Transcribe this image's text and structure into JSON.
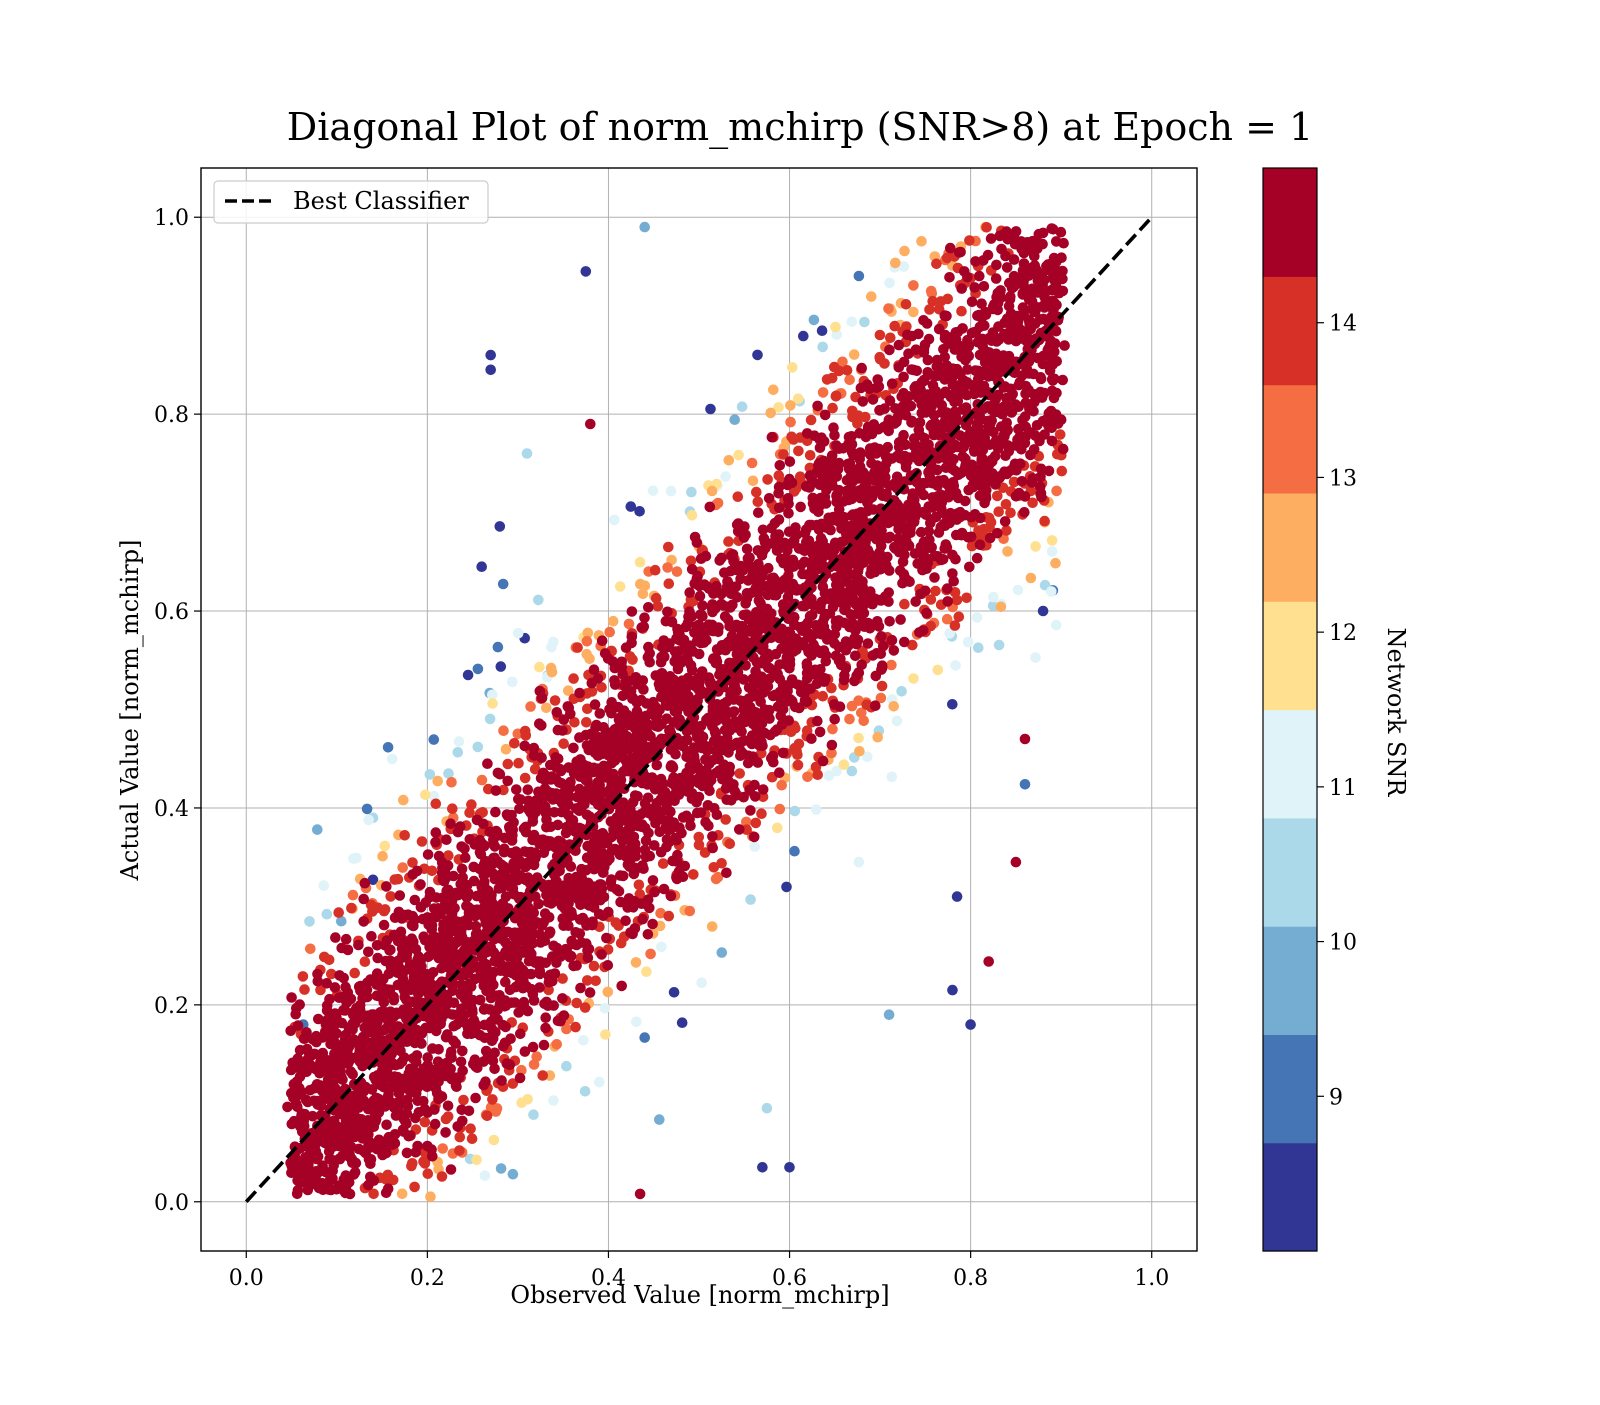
{
  "chart_data": {
    "type": "scatter",
    "title": "Diagonal Plot of norm_mchirp (SNR>8) at Epoch = 1",
    "xlabel": "Observed Value [norm_mchirp]",
    "ylabel": "Actual Value [norm_mchirp]",
    "xlim": [
      -0.05,
      1.05
    ],
    "ylim": [
      -0.05,
      1.05
    ],
    "xticks": [
      "0.0",
      "0.2",
      "0.4",
      "0.6",
      "0.8",
      "1.0"
    ],
    "yticks": [
      "0.0",
      "0.2",
      "0.4",
      "0.6",
      "0.8",
      "1.0"
    ],
    "grid": true,
    "legend": {
      "placement": "upper-left",
      "entries": [
        "Best Classifier"
      ]
    },
    "reference_line": {
      "name": "Best Classifier",
      "style": "dashed",
      "color": "#000000",
      "x": [
        0.0,
        1.0
      ],
      "y": [
        0.0,
        1.0
      ]
    },
    "colorbar": {
      "label": "Network SNR",
      "ticks": [
        "9",
        "10",
        "11",
        "12",
        "13",
        "14"
      ],
      "tick_values": [
        9,
        10,
        11,
        12,
        13,
        14
      ],
      "range": [
        8,
        15
      ],
      "bins": 10,
      "colors": [
        "#313695",
        "#4575b4",
        "#74add1",
        "#abd9e9",
        "#e0f3f8",
        "#fee090",
        "#fdae61",
        "#f46d43",
        "#d73027",
        "#a50026"
      ]
    },
    "points_sample": [
      {
        "x": 0.27,
        "y": 0.86,
        "snr": 8.3
      },
      {
        "x": 0.27,
        "y": 0.845,
        "snr": 8.3
      },
      {
        "x": 0.375,
        "y": 0.945,
        "snr": 8.3
      },
      {
        "x": 0.44,
        "y": 0.99,
        "snr": 9.5
      },
      {
        "x": 0.38,
        "y": 0.79,
        "snr": 14.8
      },
      {
        "x": 0.31,
        "y": 0.76,
        "snr": 10.2
      },
      {
        "x": 0.28,
        "y": 0.686,
        "snr": 8.5
      },
      {
        "x": 0.26,
        "y": 0.645,
        "snr": 8.5
      },
      {
        "x": 0.245,
        "y": 0.535,
        "snr": 8.5
      },
      {
        "x": 0.14,
        "y": 0.39,
        "snr": 10.2
      },
      {
        "x": 0.14,
        "y": 0.327,
        "snr": 8.5
      },
      {
        "x": 0.105,
        "y": 0.285,
        "snr": 9.8
      },
      {
        "x": 0.063,
        "y": 0.18,
        "snr": 9.0
      },
      {
        "x": 0.78,
        "y": 0.215,
        "snr": 8.4
      },
      {
        "x": 0.8,
        "y": 0.18,
        "snr": 8.4
      },
      {
        "x": 0.82,
        "y": 0.244,
        "snr": 14.8
      },
      {
        "x": 0.85,
        "y": 0.345,
        "snr": 14.8
      },
      {
        "x": 0.86,
        "y": 0.424,
        "snr": 9.0
      },
      {
        "x": 0.86,
        "y": 0.47,
        "snr": 14.8
      },
      {
        "x": 0.88,
        "y": 0.6,
        "snr": 8.4
      },
      {
        "x": 0.785,
        "y": 0.31,
        "snr": 8.4
      },
      {
        "x": 0.6,
        "y": 0.035,
        "snr": 8.5
      },
      {
        "x": 0.57,
        "y": 0.035,
        "snr": 8.5
      },
      {
        "x": 0.435,
        "y": 0.008,
        "snr": 14.8
      },
      {
        "x": 0.575,
        "y": 0.095,
        "snr": 10.5
      },
      {
        "x": 0.71,
        "y": 0.19,
        "snr": 9.8
      }
    ]
  }
}
